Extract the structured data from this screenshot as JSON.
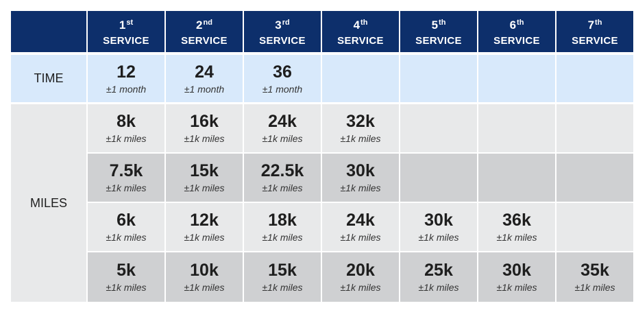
{
  "header": {
    "service_word": "SERVICE",
    "columns": [
      {
        "num": "1",
        "sup": "st"
      },
      {
        "num": "2",
        "sup": "nd"
      },
      {
        "num": "3",
        "sup": "rd"
      },
      {
        "num": "4",
        "sup": "th"
      },
      {
        "num": "5",
        "sup": "th"
      },
      {
        "num": "6",
        "sup": "th"
      },
      {
        "num": "7",
        "sup": "th"
      }
    ]
  },
  "time_row": {
    "label": "TIME",
    "values": [
      {
        "big": "12",
        "small": "±1 month"
      },
      {
        "big": "24",
        "small": "±1 month"
      },
      {
        "big": "36",
        "small": "±1 month"
      }
    ]
  },
  "miles_label": "MILES",
  "miles_rows": [
    {
      "values": [
        {
          "big": "8k",
          "small": "±1k miles"
        },
        {
          "big": "16k",
          "small": "±1k miles"
        },
        {
          "big": "24k",
          "small": "±1k miles"
        },
        {
          "big": "32k",
          "small": "±1k miles"
        }
      ]
    },
    {
      "values": [
        {
          "big": "7.5k",
          "small": "±1k miles"
        },
        {
          "big": "15k",
          "small": "±1k miles"
        },
        {
          "big": "22.5k",
          "small": "±1k miles"
        },
        {
          "big": "30k",
          "small": "±1k miles"
        }
      ]
    },
    {
      "values": [
        {
          "big": "6k",
          "small": "±1k miles"
        },
        {
          "big": "12k",
          "small": "±1k miles"
        },
        {
          "big": "18k",
          "small": "±1k miles"
        },
        {
          "big": "24k",
          "small": "±1k miles"
        },
        {
          "big": "30k",
          "small": "±1k miles"
        },
        {
          "big": "36k",
          "small": "±1k miles"
        }
      ]
    },
    {
      "values": [
        {
          "big": "5k",
          "small": "±1k miles"
        },
        {
          "big": "10k",
          "small": "±1k miles"
        },
        {
          "big": "15k",
          "small": "±1k miles"
        },
        {
          "big": "20k",
          "small": "±1k miles"
        },
        {
          "big": "25k",
          "small": "±1k miles"
        },
        {
          "big": "30k",
          "small": "±1k miles"
        },
        {
          "big": "35k",
          "small": "±1k miles"
        }
      ]
    }
  ],
  "colors": {
    "header_bg": "#0d2f6b",
    "time_row_bg": "#d8e9fb",
    "light_row_bg": "#e8e9ea",
    "dark_row_bg": "#cfd0d2"
  }
}
